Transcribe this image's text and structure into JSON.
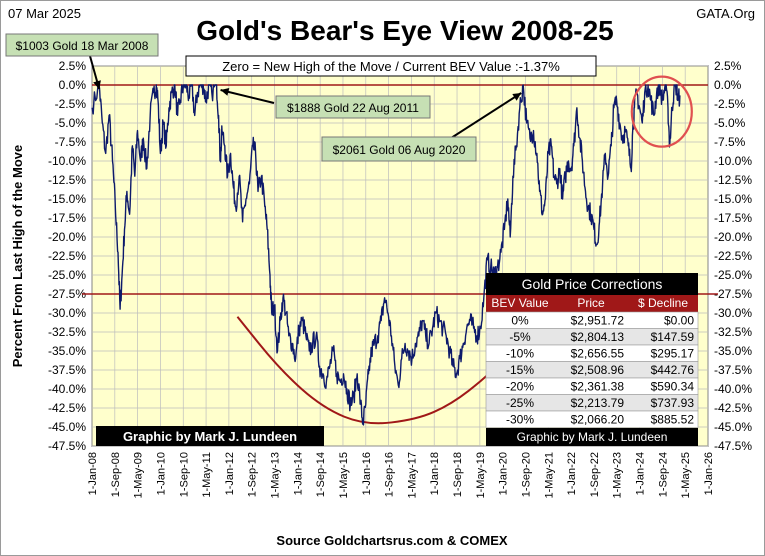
{
  "chart_data": {
    "type": "line",
    "title": "Gold's Bear's Eye View 2008-25",
    "date_label": "07 Mar 2025",
    "brand": "GATA.Org",
    "subtitle": "Zero = New High of the Move / Current  BEV Value :-1.37%",
    "ylabel": "Percent  From Last High of the Move",
    "xlabel": "Source Goldchartsrus.com & COMEX",
    "credit": "Graphic by Mark J. Lundeen",
    "ylim": [
      -47.5,
      2.5
    ],
    "xlim": [
      2008.0,
      2026.0
    ],
    "y_ticks": [
      2.5,
      0,
      -2.5,
      -5,
      -7.5,
      -10,
      -12.5,
      -15,
      -17.5,
      -20,
      -22.5,
      -25,
      -27.5,
      -30,
      -32.5,
      -35,
      -37.5,
      -40,
      -42.5,
      -45,
      -47.5
    ],
    "y_tick_labels": [
      "2.5%",
      "0.0%",
      "-2.5%",
      "-5.0%",
      "-7.5%",
      "-10.0%",
      "-12.5%",
      "-15.0%",
      "-17.5%",
      "-20.0%",
      "-22.5%",
      "-25.0%",
      "-27.5%",
      "-30.0%",
      "-32.5%",
      "-35.0%",
      "-37.5%",
      "-40.0%",
      "-42.5%",
      "-45.0%",
      "-47.5%"
    ],
    "x_tick_labels": [
      "1-Jan-08",
      "1-Sep-08",
      "1-May-09",
      "1-Jan-10",
      "1-Sep-10",
      "1-May-11",
      "1-Jan-12",
      "1-Sep-12",
      "1-May-13",
      "1-Jan-14",
      "1-Sep-14",
      "1-May-15",
      "1-Jan-16",
      "1-Sep-16",
      "1-May-17",
      "1-Jan-18",
      "1-Sep-18",
      "1-May-19",
      "1-Jan-20",
      "1-Sep-20",
      "1-May-21",
      "1-Jan-22",
      "1-Sep-22",
      "1-May-23",
      "1-Jan-24",
      "1-Sep-24",
      "1-May-25",
      "1-Jan-26"
    ],
    "x_tick_start": 2008.0,
    "x_tick_step_months": 8,
    "reference_line": -27.5,
    "annotations": [
      {
        "text": "$1003 Gold 18 Mar 2008",
        "x": 2008.21,
        "y": 0
      },
      {
        "text": "$1888 Gold 22 Aug 2011",
        "x": 2011.64,
        "y": 0
      },
      {
        "text": "$2061 Gold 06 Aug 2020",
        "x": 2020.6,
        "y": 0
      }
    ],
    "highlight_circle": {
      "center_x": 2024.65,
      "center_y": -3.5
    },
    "trend_curve": [
      [
        2012.25,
        -30.5
      ],
      [
        2013.5,
        -37.5
      ],
      [
        2014.75,
        -42.5
      ],
      [
        2016.0,
        -44.8
      ],
      [
        2017.5,
        -44.0
      ],
      [
        2018.5,
        -42.0
      ],
      [
        2019.5,
        -38.5
      ],
      [
        2020.15,
        -35.5
      ]
    ],
    "series": [
      {
        "name": "Gold BEV",
        "color": "#0d1a6b",
        "points": [
          [
            2008.0,
            -3.0
          ],
          [
            2008.21,
            0.0
          ],
          [
            2008.3,
            -5.0
          ],
          [
            2008.4,
            -9.0
          ],
          [
            2008.5,
            -4.0
          ],
          [
            2008.6,
            -10.0
          ],
          [
            2008.68,
            -16.0
          ],
          [
            2008.76,
            -22.0
          ],
          [
            2008.82,
            -29.5
          ],
          [
            2008.88,
            -25.0
          ],
          [
            2008.95,
            -19.0
          ],
          [
            2009.02,
            -14.0
          ],
          [
            2009.1,
            -17.0
          ],
          [
            2009.18,
            -8.0
          ],
          [
            2009.25,
            -12.0
          ],
          [
            2009.33,
            -6.0
          ],
          [
            2009.42,
            -10.0
          ],
          [
            2009.5,
            -7.0
          ],
          [
            2009.6,
            -11.0
          ],
          [
            2009.7,
            -4.0
          ],
          [
            2009.8,
            -1.0
          ],
          [
            2009.88,
            0.0
          ],
          [
            2009.93,
            -2.0
          ],
          [
            2010.0,
            -9.0
          ],
          [
            2010.08,
            -5.0
          ],
          [
            2010.17,
            -8.0
          ],
          [
            2010.25,
            -3.0
          ],
          [
            2010.33,
            -1.0
          ],
          [
            2010.42,
            0.0
          ],
          [
            2010.5,
            -4.0
          ],
          [
            2010.58,
            -2.0
          ],
          [
            2010.67,
            0.0
          ],
          [
            2010.75,
            0.0
          ],
          [
            2010.83,
            -1.5
          ],
          [
            2010.92,
            0.0
          ],
          [
            2011.0,
            -4.0
          ],
          [
            2011.08,
            -1.0
          ],
          [
            2011.17,
            0.0
          ],
          [
            2011.25,
            0.0
          ],
          [
            2011.33,
            -2.0
          ],
          [
            2011.42,
            0.0
          ],
          [
            2011.5,
            -1.0
          ],
          [
            2011.64,
            0.0
          ],
          [
            2011.7,
            -4.0
          ],
          [
            2011.75,
            -10.0
          ],
          [
            2011.8,
            -6.0
          ],
          [
            2011.88,
            -8.0
          ],
          [
            2011.96,
            -12.0
          ],
          [
            2012.05,
            -9.0
          ],
          [
            2012.12,
            -13.0
          ],
          [
            2012.2,
            -16.0
          ],
          [
            2012.3,
            -12.0
          ],
          [
            2012.4,
            -18.0
          ],
          [
            2012.5,
            -15.0
          ],
          [
            2012.6,
            -13.0
          ],
          [
            2012.7,
            -8.0
          ],
          [
            2012.78,
            -9.0
          ],
          [
            2012.85,
            -14.0
          ],
          [
            2012.95,
            -12.0
          ],
          [
            2013.05,
            -16.0
          ],
          [
            2013.12,
            -19.0
          ],
          [
            2013.2,
            -25.0
          ],
          [
            2013.25,
            -30.0
          ],
          [
            2013.33,
            -29.0
          ],
          [
            2013.42,
            -35.0
          ],
          [
            2013.5,
            -31.0
          ],
          [
            2013.58,
            -28.0
          ],
          [
            2013.67,
            -30.0
          ],
          [
            2013.75,
            -33.0
          ],
          [
            2013.85,
            -34.0
          ],
          [
            2013.95,
            -36.0
          ],
          [
            2014.05,
            -32.0
          ],
          [
            2014.15,
            -31.0
          ],
          [
            2014.25,
            -33.0
          ],
          [
            2014.35,
            -35.0
          ],
          [
            2014.45,
            -34.0
          ],
          [
            2014.55,
            -33.0
          ],
          [
            2014.65,
            -37.0
          ],
          [
            2014.75,
            -38.0
          ],
          [
            2014.85,
            -39.0
          ],
          [
            2014.95,
            -37.0
          ],
          [
            2015.05,
            -35.0
          ],
          [
            2015.15,
            -38.0
          ],
          [
            2015.25,
            -39.0
          ],
          [
            2015.35,
            -38.0
          ],
          [
            2015.45,
            -40.0
          ],
          [
            2015.55,
            -42.0
          ],
          [
            2015.65,
            -41.0
          ],
          [
            2015.75,
            -38.0
          ],
          [
            2015.85,
            -42.0
          ],
          [
            2015.92,
            -44.5
          ],
          [
            2016.0,
            -42.0
          ],
          [
            2016.08,
            -38.0
          ],
          [
            2016.17,
            -35.0
          ],
          [
            2016.25,
            -34.0
          ],
          [
            2016.35,
            -33.0
          ],
          [
            2016.45,
            -31.0
          ],
          [
            2016.55,
            -28.0
          ],
          [
            2016.65,
            -30.0
          ],
          [
            2016.75,
            -33.0
          ],
          [
            2016.85,
            -37.0
          ],
          [
            2016.95,
            -39.5
          ],
          [
            2017.05,
            -36.0
          ],
          [
            2017.15,
            -34.0
          ],
          [
            2017.25,
            -35.0
          ],
          [
            2017.35,
            -36.0
          ],
          [
            2017.45,
            -34.0
          ],
          [
            2017.55,
            -33.0
          ],
          [
            2017.65,
            -31.0
          ],
          [
            2017.75,
            -33.0
          ],
          [
            2017.85,
            -34.0
          ],
          [
            2017.95,
            -32.0
          ],
          [
            2018.05,
            -30.0
          ],
          [
            2018.15,
            -31.0
          ],
          [
            2018.25,
            -32.0
          ],
          [
            2018.35,
            -33.0
          ],
          [
            2018.45,
            -35.0
          ],
          [
            2018.55,
            -37.0
          ],
          [
            2018.65,
            -38.0
          ],
          [
            2018.75,
            -36.0
          ],
          [
            2018.85,
            -34.0
          ],
          [
            2018.95,
            -32.0
          ],
          [
            2019.05,
            -31.0
          ],
          [
            2019.15,
            -32.0
          ],
          [
            2019.25,
            -33.0
          ],
          [
            2019.35,
            -32.0
          ],
          [
            2019.45,
            -28.0
          ],
          [
            2019.55,
            -23.0
          ],
          [
            2019.65,
            -24.0
          ],
          [
            2019.75,
            -25.0
          ],
          [
            2019.85,
            -24.0
          ],
          [
            2019.95,
            -22.0
          ],
          [
            2020.05,
            -19.0
          ],
          [
            2020.15,
            -15.0
          ],
          [
            2020.22,
            -20.0
          ],
          [
            2020.3,
            -12.0
          ],
          [
            2020.4,
            -8.0
          ],
          [
            2020.5,
            -3.0
          ],
          [
            2020.6,
            0.0
          ],
          [
            2020.7,
            -5.0
          ],
          [
            2020.8,
            -7.0
          ],
          [
            2020.9,
            -6.0
          ],
          [
            2021.0,
            -9.0
          ],
          [
            2021.08,
            -14.0
          ],
          [
            2021.17,
            -17.0
          ],
          [
            2021.25,
            -15.0
          ],
          [
            2021.33,
            -9.0
          ],
          [
            2021.42,
            -8.0
          ],
          [
            2021.5,
            -12.0
          ],
          [
            2021.58,
            -13.0
          ],
          [
            2021.67,
            -11.0
          ],
          [
            2021.75,
            -15.0
          ],
          [
            2021.83,
            -12.0
          ],
          [
            2021.92,
            -10.0
          ],
          [
            2022.0,
            -11.0
          ],
          [
            2022.08,
            -8.0
          ],
          [
            2022.17,
            -3.0
          ],
          [
            2022.25,
            -7.0
          ],
          [
            2022.33,
            -10.0
          ],
          [
            2022.42,
            -14.0
          ],
          [
            2022.5,
            -16.0
          ],
          [
            2022.58,
            -17.0
          ],
          [
            2022.67,
            -19.0
          ],
          [
            2022.75,
            -21.0
          ],
          [
            2022.83,
            -18.0
          ],
          [
            2022.92,
            -13.0
          ],
          [
            2023.0,
            -9.0
          ],
          [
            2023.08,
            -12.0
          ],
          [
            2023.17,
            -8.0
          ],
          [
            2023.25,
            -3.0
          ],
          [
            2023.33,
            -2.0
          ],
          [
            2023.42,
            -5.0
          ],
          [
            2023.5,
            -7.0
          ],
          [
            2023.58,
            -6.0
          ],
          [
            2023.67,
            -8.0
          ],
          [
            2023.75,
            -11.0
          ],
          [
            2023.8,
            -6.0
          ],
          [
            2023.85,
            -3.0
          ],
          [
            2023.92,
            -1.0
          ],
          [
            2024.0,
            -3.0
          ],
          [
            2024.08,
            -5.0
          ],
          [
            2024.15,
            -1.0
          ],
          [
            2024.25,
            0.0
          ],
          [
            2024.33,
            -2.0
          ],
          [
            2024.42,
            -4.0
          ],
          [
            2024.5,
            -1.0
          ],
          [
            2024.58,
            0.0
          ],
          [
            2024.67,
            -2.0
          ],
          [
            2024.75,
            0.0
          ],
          [
            2024.83,
            -3.0
          ],
          [
            2024.88,
            -8.0
          ],
          [
            2024.95,
            -3.0
          ],
          [
            2025.0,
            -1.0
          ],
          [
            2025.08,
            0.0
          ],
          [
            2025.12,
            -2.0
          ],
          [
            2025.18,
            -1.37
          ]
        ]
      }
    ],
    "table": {
      "title": "Gold Price Corrections",
      "columns": [
        "BEV Value",
        "Price",
        "$ Decline"
      ],
      "rows": [
        [
          "0%",
          "$2,951.72",
          "$0.00"
        ],
        [
          "-5%",
          "$2,804.13",
          "$147.59"
        ],
        [
          "-10%",
          "$2,656.55",
          "$295.17"
        ],
        [
          "-15%",
          "$2,508.96",
          "$442.76"
        ],
        [
          "-20%",
          "$2,361.38",
          "$590.34"
        ],
        [
          "-25%",
          "$2,213.79",
          "$737.93"
        ],
        [
          "-30%",
          "$2,066.20",
          "$885.52"
        ]
      ],
      "footer": "Graphic by Mark J. Lundeen"
    },
    "colors": {
      "plot_bg": "#ffffcc",
      "line": "#0d1a6b",
      "ref_line": "#a01818",
      "curve": "#a01818",
      "circle": "#e05050",
      "callout_bg": "#c6e0b4",
      "table_header": "#a01818",
      "table_title_bg": "#000000"
    }
  }
}
